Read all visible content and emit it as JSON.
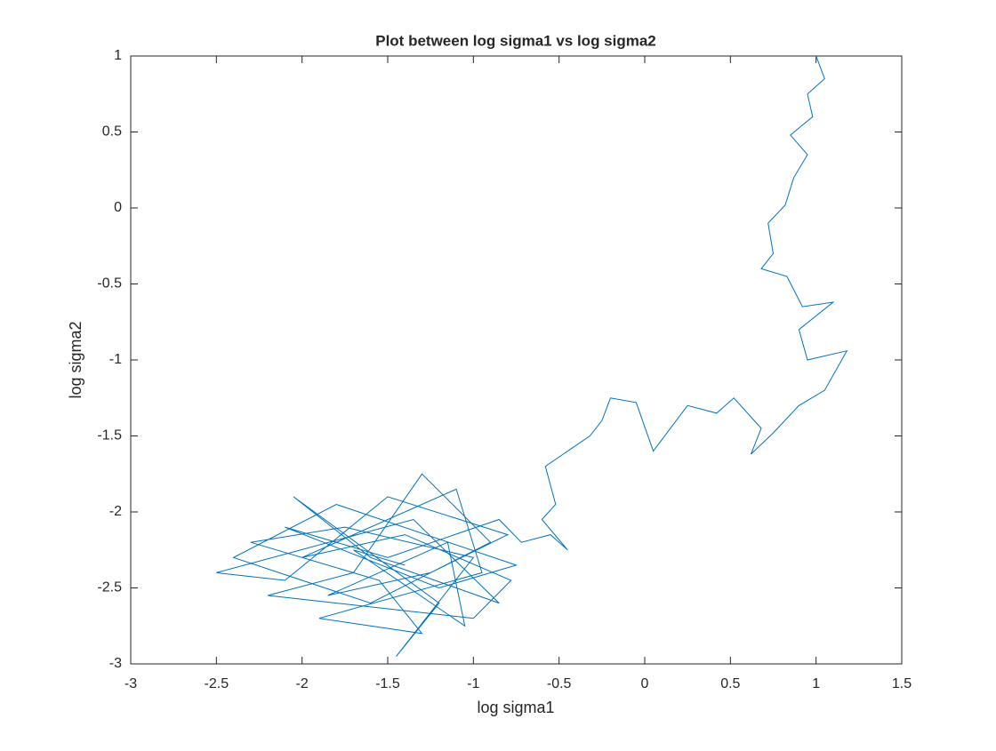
{
  "chart_data": {
    "type": "line",
    "title": "Plot between log sigma1 vs log sigma2",
    "x_label": "log sigma1",
    "y_label": "log sigma2",
    "xlim": [
      -3,
      1.5
    ],
    "xticks": [
      -3,
      -2.5,
      -2,
      -1.5,
      -1,
      -0.5,
      0,
      0.5,
      1,
      1.5
    ],
    "ylim": [
      -3,
      1
    ],
    "yticks": [
      -3,
      -2.5,
      -2,
      -1.5,
      -1,
      -0.5,
      0,
      0.5,
      1
    ],
    "series": [
      {
        "color": "#0072bd",
        "x": [
          1.0,
          1.05,
          0.95,
          0.98,
          0.85,
          0.95,
          0.87,
          0.82,
          0.72,
          0.75,
          0.68,
          0.83,
          0.92,
          1.1,
          0.9,
          0.95,
          1.18,
          1.05,
          0.9,
          0.75,
          0.62,
          0.68,
          0.52,
          0.42,
          0.25,
          0.15,
          0.05,
          -0.05,
          -0.2,
          -0.25,
          -0.32,
          -0.45,
          -0.58,
          -0.52,
          -0.6,
          -0.45,
          -0.55,
          -0.72,
          -0.85,
          -1.5,
          -2.1,
          -1.2,
          -0.75,
          -1.8,
          -2.4,
          -1.6,
          -0.9,
          -1.3,
          -1.7,
          -2.2,
          -1.0,
          -0.78,
          -1.4,
          -2.0,
          -1.1,
          -0.95,
          -1.9,
          -1.3,
          -1.55,
          -2.3,
          -1.75,
          -1.0,
          -1.45,
          -1.2,
          -2.05,
          -1.6,
          -0.85,
          -1.35,
          -2.5,
          -2.1,
          -1.5,
          -0.8,
          -1.25,
          -1.85,
          -1.15,
          -1.05,
          -1.7,
          -1.4
        ],
        "values": [
          1.0,
          0.85,
          0.75,
          0.6,
          0.48,
          0.35,
          0.2,
          0.02,
          -0.1,
          -0.3,
          -0.4,
          -0.45,
          -0.65,
          -0.62,
          -0.8,
          -1.0,
          -0.94,
          -1.2,
          -1.3,
          -1.48,
          -1.62,
          -1.45,
          -1.25,
          -1.35,
          -1.3,
          -1.45,
          -1.6,
          -1.28,
          -1.25,
          -1.4,
          -1.5,
          -1.6,
          -1.7,
          -1.95,
          -2.05,
          -2.25,
          -2.15,
          -2.2,
          -2.05,
          -2.3,
          -2.1,
          -2.5,
          -2.35,
          -1.95,
          -2.3,
          -2.6,
          -2.2,
          -1.75,
          -2.4,
          -2.55,
          -2.7,
          -2.45,
          -2.15,
          -2.3,
          -1.85,
          -2.4,
          -2.7,
          -2.8,
          -2.45,
          -2.2,
          -2.1,
          -2.3,
          -2.95,
          -2.6,
          -1.9,
          -2.3,
          -2.6,
          -2.05,
          -2.4,
          -2.45,
          -1.9,
          -2.15,
          -2.4,
          -2.55,
          -2.2,
          -2.75,
          -2.25,
          -2.35
        ]
      }
    ]
  }
}
